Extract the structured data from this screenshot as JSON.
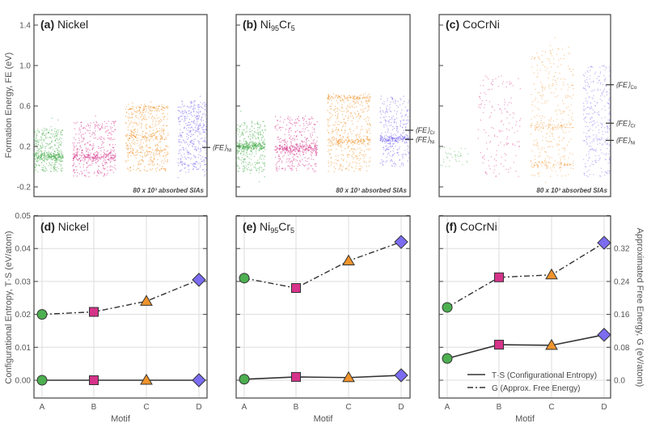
{
  "chart_data": [
    {
      "type": "scatter",
      "ylabel": "Formation Energy, FE (eV)",
      "yticks": [
        "1.4",
        "1.0",
        "0.6",
        "0.2",
        "-0.2"
      ],
      "ylim": [
        -0.25,
        1.5
      ],
      "note": "80 x 10³ absorbed SIAs",
      "panels": [
        {
          "label": "(a)",
          "title": "Nickel",
          "title_parts": [
            "Nickel"
          ],
          "annotations": [
            {
              "text": "⟨FE⟩",
              "sub": "Ni",
              "fe": 0.19
            }
          ],
          "motifs": [
            {
              "motif": "A",
              "color": "#4caf50",
              "fe_range": [
                -0.05,
                0.38
              ],
              "dense_bands": [
                0.1
              ]
            },
            {
              "motif": "B",
              "color": "#d6338a",
              "fe_range": [
                -0.1,
                0.45
              ],
              "dense_bands": [
                0.1
              ]
            },
            {
              "motif": "C",
              "color": "#f0932b",
              "fe_range": [
                -0.05,
                0.6
              ],
              "dense_bands": [
                0.58,
                0.15,
                0.3
              ]
            },
            {
              "motif": "D",
              "color": "#7b6cf0",
              "fe_range": [
                -0.05,
                0.65
              ],
              "dense_bands": []
            }
          ]
        },
        {
          "label": "(b)",
          "title": "Ni95Cr5",
          "title_parts": [
            "Ni",
            "95",
            "Cr",
            "5"
          ],
          "annotations": [
            {
              "text": "⟨FE⟩",
              "sub": "Cr",
              "fe": 0.36
            },
            {
              "text": "⟨FE⟩",
              "sub": "Ni",
              "fe": 0.27
            }
          ],
          "motifs": [
            {
              "motif": "A",
              "color": "#4caf50",
              "fe_range": [
                -0.05,
                0.45
              ],
              "dense_bands": [
                0.2
              ]
            },
            {
              "motif": "B",
              "color": "#d6338a",
              "fe_range": [
                -0.05,
                0.5
              ],
              "dense_bands": [
                0.18
              ]
            },
            {
              "motif": "C",
              "color": "#f0932b",
              "fe_range": [
                -0.05,
                0.7
              ],
              "dense_bands": [
                0.68,
                0.25
              ]
            },
            {
              "motif": "D",
              "color": "#7b6cf0",
              "fe_range": [
                0.0,
                0.7
              ],
              "dense_bands": [
                0.27
              ]
            }
          ]
        },
        {
          "label": "(c)",
          "title": "CoCrNi",
          "title_parts": [
            "CoCrNi"
          ],
          "annotations": [
            {
              "text": "⟨FE⟩",
              "sub": "Co",
              "fe": 0.81
            },
            {
              "text": "⟨FE⟩",
              "sub": "Cr",
              "fe": 0.43
            },
            {
              "text": "⟨FE⟩",
              "sub": "Ni",
              "fe": 0.26
            }
          ],
          "motifs": [
            {
              "motif": "A",
              "color": "#4caf50",
              "fe_range": [
                0.0,
                0.2
              ],
              "dense_bands": []
            },
            {
              "motif": "B",
              "color": "#d6338a",
              "fe_range": [
                -0.1,
                0.9
              ],
              "dense_bands": []
            },
            {
              "motif": "C",
              "color": "#f0932b",
              "fe_range": [
                -0.1,
                1.2
              ],
              "dense_bands": [
                0.4,
                0.02
              ]
            },
            {
              "motif": "D",
              "color": "#7b6cf0",
              "fe_range": [
                -0.1,
                1.0
              ],
              "dense_bands": []
            }
          ]
        }
      ]
    },
    {
      "type": "line",
      "xlabel": "Motif",
      "categories": [
        "A",
        "B",
        "C",
        "D"
      ],
      "ylabel": "Configurational Entropy, T·S (eV/atom)",
      "ylabel_right": "Approximated Free Energy, G (eV/atom)",
      "yticks": [
        "0.00",
        "0.01",
        "0.02",
        "0.03",
        "0.04",
        "0.05"
      ],
      "yticks_right": [
        "0.0",
        "0.08",
        "0.16",
        "0.24",
        "0.32"
      ],
      "ylim": [
        -0.005,
        0.05
      ],
      "ylim_right": [
        -0.04,
        0.4
      ],
      "grid": true,
      "legend": {
        "placement": "bottom-right",
        "ts": "T·S (Configurational Entropy)",
        "g": "G (Approx. Free Energy)"
      },
      "markers": [
        {
          "motif": "A",
          "shape": "circle",
          "color": "#4caf50"
        },
        {
          "motif": "B",
          "shape": "square",
          "color": "#d6338a"
        },
        {
          "motif": "C",
          "shape": "triangle",
          "color": "#f0932b"
        },
        {
          "motif": "D",
          "shape": "diamond",
          "color": "#7b6cf0"
        }
      ],
      "panels": [
        {
          "label": "(d)",
          "title": "Nickel",
          "title_parts": [
            "Nickel"
          ],
          "series": [
            {
              "name": "T·S (Configurational Entropy)",
              "values": [
                0.0,
                0.0,
                0.0,
                0.0
              ]
            },
            {
              "name": "G (Approx. Free Energy)",
              "values": [
                0.16,
                0.166,
                0.192,
                0.244
              ]
            }
          ]
        },
        {
          "label": "(e)",
          "title": "Ni95Cr5",
          "title_parts": [
            "Ni",
            "95",
            "Cr",
            "5"
          ],
          "series": [
            {
              "name": "T·S (Configurational Entropy)",
              "values": [
                0.0003,
                0.001,
                0.0008,
                0.0015
              ]
            },
            {
              "name": "G (Approx. Free Energy)",
              "values": [
                0.248,
                0.224,
                0.29,
                0.336
              ]
            }
          ]
        },
        {
          "label": "(f)",
          "title": "CoCrNi",
          "title_parts": [
            "CoCrNi"
          ],
          "series": [
            {
              "name": "T·S (Configurational Entropy)",
              "values": [
                0.0066,
                0.0108,
                0.0106,
                0.0138
              ]
            },
            {
              "name": "G (Approx. Free Energy)",
              "values": [
                0.177,
                0.25,
                0.256,
                0.334
              ]
            }
          ]
        }
      ]
    }
  ]
}
